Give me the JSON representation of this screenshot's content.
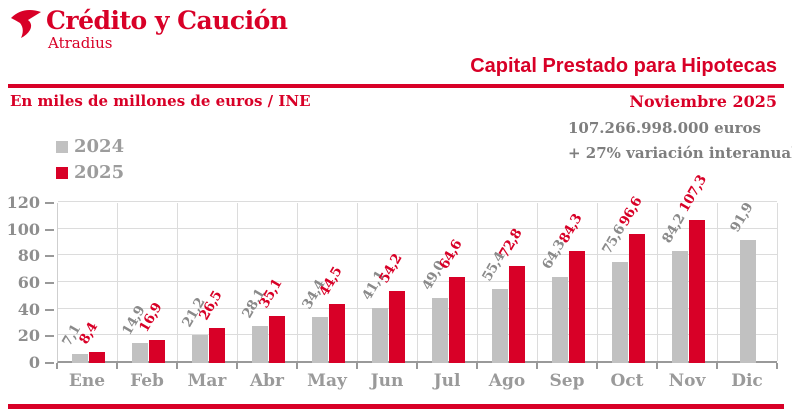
{
  "colors": {
    "accent": "#D80027",
    "bar_2024": "#C1C1C1",
    "grid": "#DCDCDC",
    "axis": "#999999",
    "label_gray": "#8A8A8A",
    "stats_gray": "#7E7E7E"
  },
  "header": {
    "logo_title": "Crédito y Caución",
    "logo_subtitle": "Atradius",
    "title": "Capital Prestado para Hipotecas",
    "units_label": "En miles de millones de euros / INE",
    "date_label": "Noviembre 2025"
  },
  "stats": {
    "total": "107.266.998.000 euros",
    "variation": "+ 27% variación interanual"
  },
  "legend": [
    {
      "label": "2024",
      "color": "#C1C1C1"
    },
    {
      "label": "2025",
      "color": "#D80027"
    }
  ],
  "chart_data": {
    "type": "bar",
    "categories": [
      "Ene",
      "Feb",
      "Mar",
      "Abr",
      "May",
      "Jun",
      "Jul",
      "Ago",
      "Sep",
      "Oct",
      "Nov",
      "Dic"
    ],
    "series": [
      {
        "name": "2024",
        "color": "#C1C1C1",
        "label_color": "#8A8A8A",
        "values": [
          7.1,
          14.9,
          21.2,
          28.1,
          34.4,
          41.1,
          49.0,
          55.4,
          64.3,
          75.6,
          84.2,
          91.9
        ]
      },
      {
        "name": "2025",
        "color": "#D80027",
        "label_color": "#D80027",
        "values": [
          8.4,
          16.9,
          26.5,
          35.1,
          44.5,
          54.2,
          64.6,
          72.8,
          84.3,
          96.6,
          107.3,
          null
        ]
      }
    ],
    "title": "Capital Prestado para Hipotecas",
    "ylabel": "En miles de millones de euros / INE",
    "ylim": [
      0,
      120
    ],
    "yticks": [
      0,
      20,
      40,
      60,
      80,
      100,
      120
    ],
    "grid": true,
    "legend_position": "top-left",
    "value_labels": "rotated, decimal comma"
  }
}
